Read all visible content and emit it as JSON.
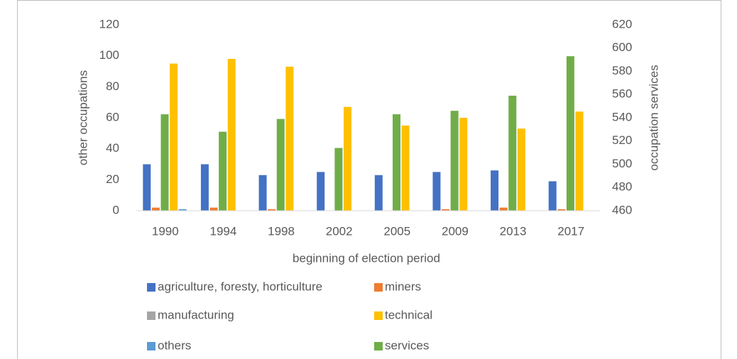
{
  "chart_data": {
    "type": "bar",
    "categories": [
      "1990",
      "1994",
      "1998",
      "2002",
      "2005",
      "2009",
      "2013",
      "2017"
    ],
    "x_label": "beginning of election period",
    "y_label": "other occupations",
    "y2_label": "occupation services",
    "ylim": [
      0,
      120
    ],
    "yticks": [
      0,
      20,
      40,
      60,
      80,
      100,
      120
    ],
    "y2lim": [
      460,
      620
    ],
    "y2ticks": [
      460,
      480,
      500,
      520,
      540,
      560,
      580,
      600,
      620
    ],
    "grid": false,
    "legend": "bottom",
    "series": [
      {
        "name": "agriculture, foresty, horticulture",
        "color": "#4472c4",
        "values": [
          30,
          30,
          23,
          25,
          23,
          25,
          26,
          19
        ]
      },
      {
        "name": "miners",
        "color": "#ed7d31",
        "values": [
          2,
          2,
          1,
          0,
          0,
          1,
          2,
          1
        ]
      },
      {
        "name": "manufacturing",
        "color": "#a5a5a5",
        "values": [
          0,
          0,
          0,
          0,
          0,
          0,
          0,
          0
        ]
      },
      {
        "name": "technical",
        "color": "#ffc000",
        "values": [
          95,
          98,
          93,
          67,
          55,
          60,
          53,
          64
        ]
      },
      {
        "name": "others",
        "color": "#5b9bd5",
        "values": [
          1,
          0,
          0,
          0,
          0,
          0,
          0,
          0
        ]
      },
      {
        "name": "services",
        "color": "#70ad47",
        "axis": "y2",
        "values": [
          543,
          528,
          539,
          514,
          543,
          546,
          559,
          593
        ]
      }
    ]
  }
}
